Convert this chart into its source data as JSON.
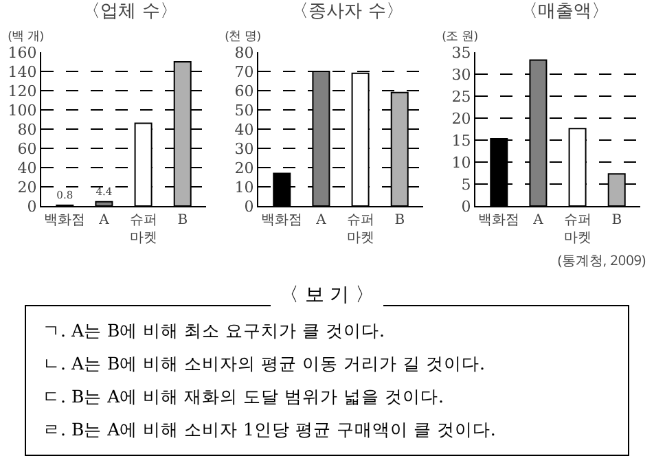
{
  "chart_data": [
    {
      "type": "bar",
      "title": "〈업체 수〉",
      "ylabel": "(백 개)",
      "categories": [
        "백화점",
        "A",
        "슈퍼\n마켓",
        "B"
      ],
      "values": [
        0.8,
        4.4,
        86,
        150
      ],
      "colors": [
        "#000000",
        "#808080",
        "#ffffff",
        "#b0b0b0"
      ],
      "value_labels": [
        "0.8",
        "4.4",
        null,
        null
      ],
      "ylim": [
        0,
        160
      ],
      "yticks": [
        0,
        20,
        40,
        60,
        80,
        100,
        120,
        140,
        160
      ],
      "grid": "y"
    },
    {
      "type": "bar",
      "title": "〈종사자 수〉",
      "ylabel": "(천 명)",
      "categories": [
        "백화점",
        "A",
        "슈퍼\n마켓",
        "B"
      ],
      "values": [
        17,
        70,
        69,
        59
      ],
      "colors": [
        "#000000",
        "#808080",
        "#ffffff",
        "#b0b0b0"
      ],
      "ylim": [
        0,
        80
      ],
      "yticks": [
        0,
        10,
        20,
        30,
        40,
        50,
        60,
        70,
        80
      ],
      "grid": "y"
    },
    {
      "type": "bar",
      "title": "〈매출액〉",
      "ylabel": "(조 원)",
      "categories": [
        "백화점",
        "A",
        "슈퍼\n마켓",
        "B"
      ],
      "values": [
        15.3,
        33.2,
        17.6,
        7.3
      ],
      "colors": [
        "#000000",
        "#808080",
        "#ffffff",
        "#b0b0b0"
      ],
      "ylim": [
        0,
        35
      ],
      "yticks": [
        0,
        5,
        10,
        15,
        20,
        25,
        30,
        35
      ],
      "grid": "y",
      "annotations": [
        "(통계청, 2009)"
      ]
    },
    {
      "type": "other",
      "title": "〈 보 기 〉",
      "annotations": [
        "ㄱ. A는 B에 비해 최소 요구치가 클 것이다.",
        "ㄴ. A는 B에 비해 소비자의 평균 이동 거리가 길 것이다.",
        "ㄷ. B는 A에 비해 재화의 도달 범위가 넓을 것이다.",
        "ㄹ. B는 A에 비해 소비자 1인당 평균 구매액이 클 것이다."
      ]
    }
  ]
}
